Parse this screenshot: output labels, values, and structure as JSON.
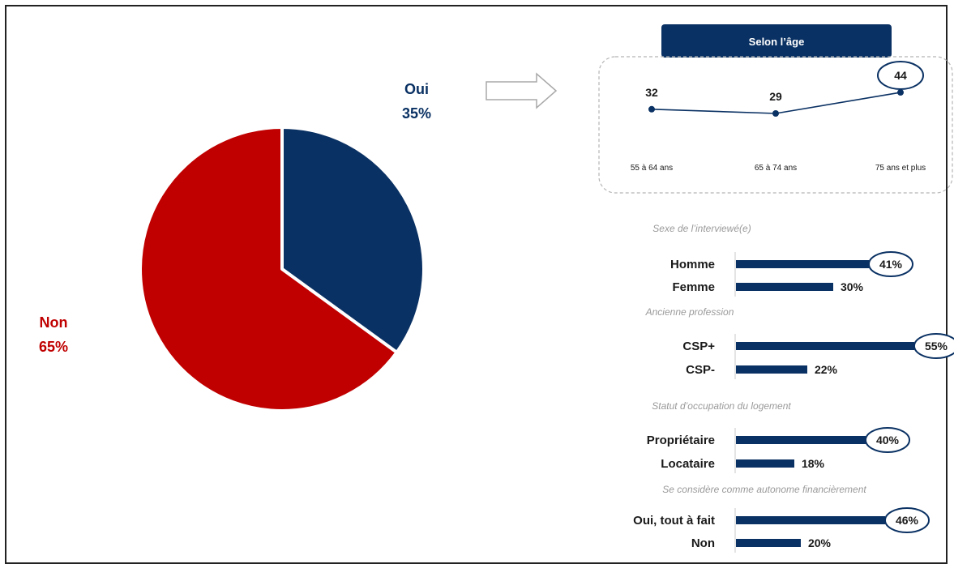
{
  "colors": {
    "navy": "#0a3163",
    "red": "#c00000",
    "gray": "#9a9a9a",
    "text": "#1a1a1a"
  },
  "chart_data": [
    {
      "type": "pie",
      "slices": [
        {
          "label": "Oui",
          "value": 35,
          "value_label": "35%",
          "color": "#0a3163"
        },
        {
          "label": "Non",
          "value": 65,
          "value_label": "65%",
          "color": "#c00000"
        }
      ]
    },
    {
      "type": "line",
      "title": "Selon l’âge",
      "categories": [
        "55 à 64 ans",
        "65 à 74 ans",
        "75 ans et plus"
      ],
      "values": [
        32,
        29,
        44
      ],
      "value_labels": [
        "32",
        "29",
        "44"
      ],
      "highlighted_index": 2
    },
    {
      "type": "bar",
      "orientation": "horizontal",
      "groups": [
        {
          "title": "Sexe de l’interviewé(e)",
          "items": [
            {
              "label": "Homme",
              "value": 41,
              "value_label": "41%",
              "highlight": true
            },
            {
              "label": "Femme",
              "value": 30,
              "value_label": "30%",
              "highlight": false
            }
          ]
        },
        {
          "title": "Ancienne profession",
          "items": [
            {
              "label": "CSP+",
              "value": 55,
              "value_label": "55%",
              "highlight": true
            },
            {
              "label": "CSP-",
              "value": 22,
              "value_label": "22%",
              "highlight": false
            }
          ]
        },
        {
          "title": "Statut d’occupation du logement",
          "items": [
            {
              "label": "Propriétaire",
              "value": 40,
              "value_label": "40%",
              "highlight": true
            },
            {
              "label": "Locataire",
              "value": 18,
              "value_label": "18%",
              "highlight": false
            }
          ]
        },
        {
          "title": "Se considère comme autonome financièrement",
          "items": [
            {
              "label": "Oui, tout à fait",
              "value": 46,
              "value_label": "46%",
              "highlight": true
            },
            {
              "label": "Non",
              "value": 20,
              "value_label": "20%",
              "highlight": false
            }
          ]
        }
      ]
    }
  ]
}
